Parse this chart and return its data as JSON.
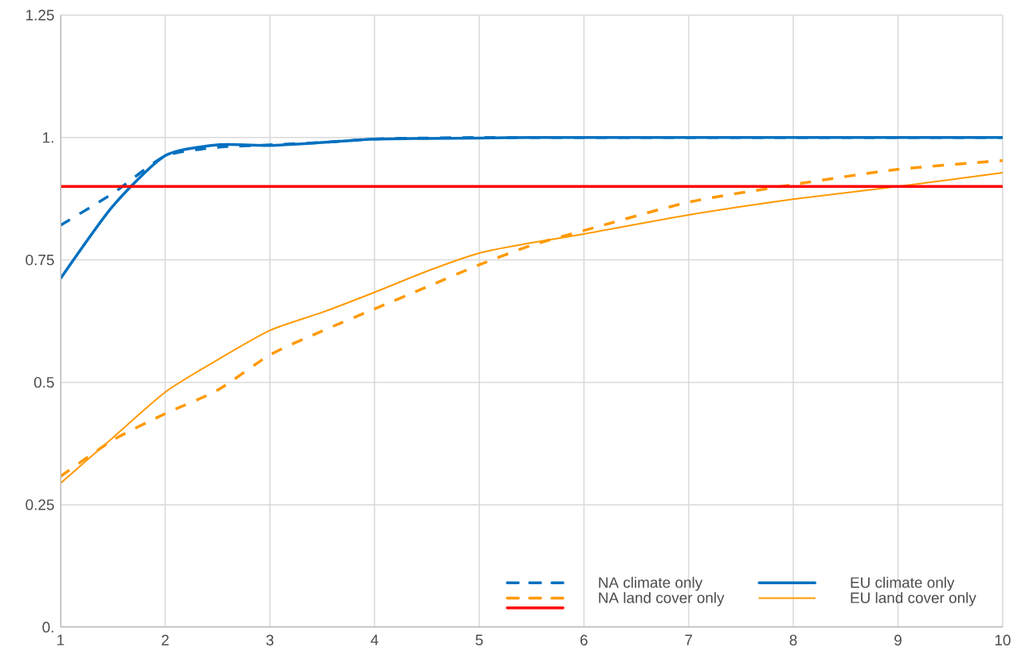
{
  "chart_data": {
    "type": "line",
    "x": [
      1,
      1.5,
      2,
      2.5,
      3,
      3.5,
      4,
      4.5,
      5,
      5.5,
      6,
      7,
      8,
      9,
      10
    ],
    "xlim": [
      1,
      10
    ],
    "xticks": [
      1,
      2,
      3,
      4,
      5,
      6,
      7,
      8,
      9,
      10
    ],
    "ylim": [
      0,
      1.25
    ],
    "yticks": [
      {
        "value": 0,
        "label": "0."
      },
      0.25,
      0.5,
      0.75,
      {
        "value": 1,
        "label": "1."
      },
      1.25
    ],
    "grid": true,
    "legend": "bottom right",
    "series": [
      {
        "name": "NA climate only",
        "color": "#0070c0",
        "line_style": "dashed",
        "values": [
          0.821,
          0.886,
          0.962,
          0.98,
          0.985,
          0.99,
          0.997,
          0.999,
          1.0,
          1.0,
          1.0,
          1.0,
          1.0,
          1.0,
          1.0
        ]
      },
      {
        "name": "EU climate only",
        "color": "#0070c0",
        "line_style": "solid",
        "values": [
          0.712,
          0.86,
          0.963,
          0.985,
          0.984,
          0.99,
          0.997,
          0.998,
          0.999,
          1.0,
          1.0,
          1.0,
          1.0,
          1.0,
          1.0
        ]
      },
      {
        "name": "NA land cover only",
        "color": "#ff9900",
        "line_style": "dashed",
        "values": [
          0.308,
          0.382,
          0.436,
          0.484,
          0.556,
          0.605,
          0.65,
          0.695,
          0.74,
          0.78,
          0.81,
          0.868,
          0.904,
          0.935,
          0.953
        ]
      },
      {
        "name": "EU land cover only",
        "color": "#ff9900",
        "line_style": "solid",
        "values": [
          0.294,
          0.387,
          0.48,
          0.546,
          0.606,
          0.643,
          0.684,
          0.727,
          0.764,
          0.785,
          0.803,
          0.842,
          0.874,
          0.9,
          0.928
        ]
      },
      {
        "color": "#ff0000",
        "line_style": "solid",
        "x": [
          1,
          10
        ],
        "values": [
          0.9,
          0.9
        ]
      }
    ]
  }
}
